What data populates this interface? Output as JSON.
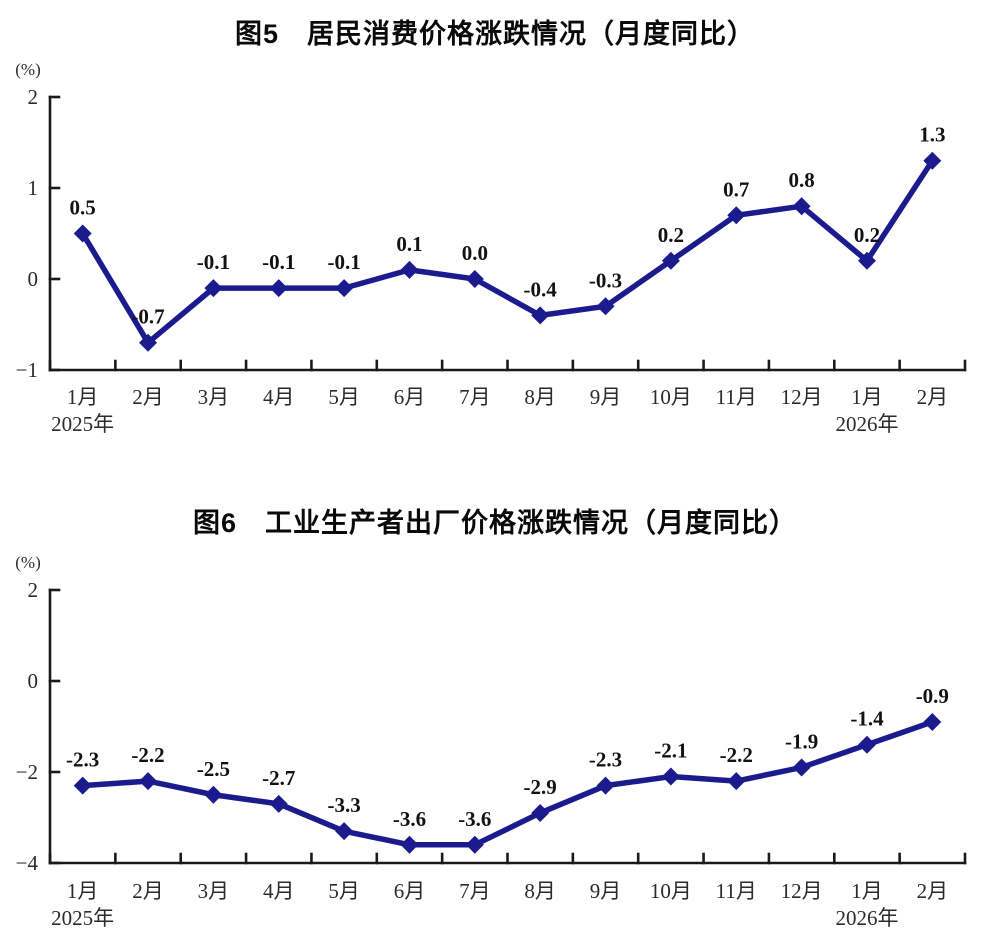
{
  "page": {
    "background": "#ffffff",
    "axis_color": "#1a1a1a",
    "series_color": "#1b1b8e"
  },
  "chart_data": [
    {
      "type": "line",
      "title": "图5　居民消费价格涨跌情况（月度同比）",
      "unit_label": "(%)",
      "series_color": "#1b1b8e",
      "categories": [
        "1月",
        "2月",
        "3月",
        "4月",
        "5月",
        "6月",
        "7月",
        "8月",
        "9月",
        "10月",
        "11月",
        "12月",
        "1月",
        "2月"
      ],
      "year_labels": [
        {
          "index": 0,
          "text": "2025年"
        },
        {
          "index": 12,
          "text": "2026年"
        }
      ],
      "values": [
        0.5,
        -0.7,
        -0.1,
        -0.1,
        -0.1,
        0.1,
        0.0,
        -0.4,
        -0.3,
        0.2,
        0.7,
        0.8,
        0.2,
        1.3
      ],
      "point_labels": [
        "0.5",
        "-0.7",
        "-0.1",
        "-0.1",
        "-0.1",
        "0.1",
        "0.0",
        "-0.4",
        "-0.3",
        "0.2",
        "0.7",
        "0.8",
        "0.2",
        "1.3"
      ],
      "yticks": [
        {
          "value": 2,
          "label": "2"
        },
        {
          "value": 1,
          "label": "1"
        },
        {
          "value": 0,
          "label": "0"
        },
        {
          "value": -1,
          "label": "−1"
        }
      ],
      "ylim": [
        -1,
        2
      ],
      "grid": false,
      "legend": "none"
    },
    {
      "type": "line",
      "title": "图6　工业生产者出厂价格涨跌情况（月度同比）",
      "unit_label": "(%)",
      "series_color": "#1b1b8e",
      "categories": [
        "1月",
        "2月",
        "3月",
        "4月",
        "5月",
        "6月",
        "7月",
        "8月",
        "9月",
        "10月",
        "11月",
        "12月",
        "1月",
        "2月"
      ],
      "year_labels": [
        {
          "index": 0,
          "text": "2025年"
        },
        {
          "index": 12,
          "text": "2026年"
        }
      ],
      "values": [
        -2.3,
        -2.2,
        -2.5,
        -2.7,
        -3.3,
        -3.6,
        -3.6,
        -2.9,
        -2.3,
        -2.1,
        -2.2,
        -1.9,
        -1.4,
        -0.9
      ],
      "point_labels": [
        "-2.3",
        "-2.2",
        "-2.5",
        "-2.7",
        "-3.3",
        "-3.6",
        "-3.6",
        "-2.9",
        "-2.3",
        "-2.1",
        "-2.2",
        "-1.9",
        "-1.4",
        "-0.9"
      ],
      "yticks": [
        {
          "value": 2,
          "label": "2"
        },
        {
          "value": 0,
          "label": "0"
        },
        {
          "value": -2,
          "label": "−2"
        },
        {
          "value": -4,
          "label": "−4"
        }
      ],
      "ylim": [
        -4,
        2
      ],
      "grid": false,
      "legend": "none"
    }
  ]
}
